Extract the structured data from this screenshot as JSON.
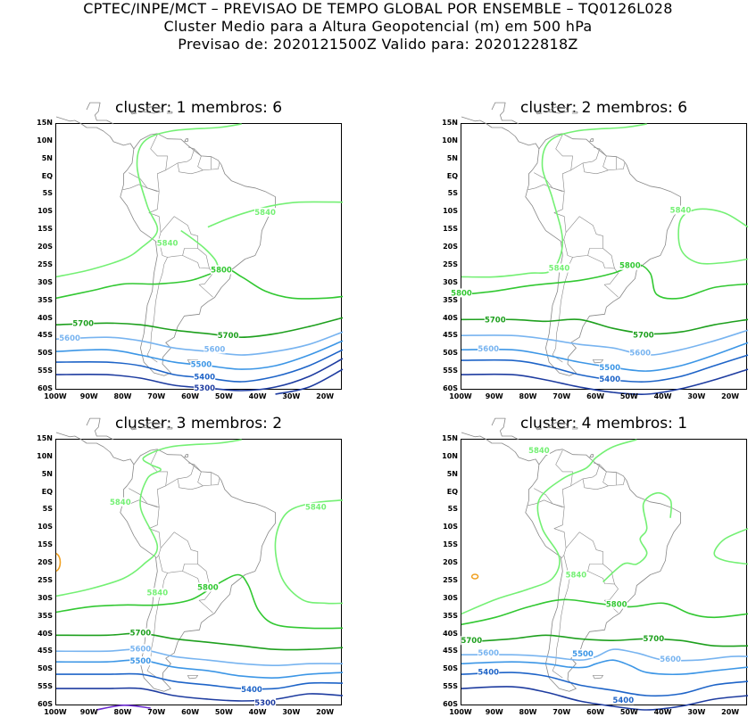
{
  "header": {
    "line1": "CPTEC/INPE/MCT – PREVISAO DE TEMPO GLOBAL POR ENSEMBLE – TQ0126L028",
    "line2": "Cluster Medio para a Altura Geopotencial (m) em 500 hPa",
    "line3": "Previsao de: 2020121500Z   Valido para: 2020122818Z"
  },
  "axes": {
    "lat_labels": [
      "15N",
      "10N",
      "5N",
      "EQ",
      "5S",
      "10S",
      "15S",
      "20S",
      "25S",
      "30S",
      "35S",
      "40S",
      "45S",
      "50S",
      "55S",
      "60S"
    ],
    "lon_labels": [
      "100W",
      "90W",
      "80W",
      "70W",
      "60W",
      "50W",
      "40W",
      "30W",
      "20W"
    ]
  },
  "colors": {
    "c5840": "#74f074",
    "c5800": "#32c832",
    "c5700": "#1ea01e",
    "c5600": "#78b4f0",
    "c5500": "#3c96e6",
    "c5400": "#1e64c8",
    "c5300": "#1e3ca0",
    "c5200": "#6a2ad0",
    "orange": "#f0a020",
    "coast": "#888888"
  },
  "panels": [
    {
      "title": "cluster: 1   membros: 6",
      "labels": [
        "5840",
        "5840",
        "5800",
        "5700",
        "5700",
        "5600",
        "5600",
        "5500",
        "5400",
        "5300"
      ]
    },
    {
      "title": "cluster: 2   membros: 6",
      "labels": [
        "5840",
        "5840",
        "5800",
        "5700",
        "5700",
        "5600",
        "5600",
        "5500",
        "5400",
        "5800"
      ]
    },
    {
      "title": "cluster: 3   membros: 2",
      "labels": [
        "5840",
        "5840",
        "5840",
        "5800",
        "5700",
        "5600",
        "5500",
        "5400",
        "5300"
      ]
    },
    {
      "title": "cluster: 4   membros: 1",
      "labels": [
        "5840",
        "5840",
        "5800",
        "5700",
        "5700",
        "5600",
        "5600",
        "5500",
        "5400",
        "5400"
      ]
    }
  ]
}
